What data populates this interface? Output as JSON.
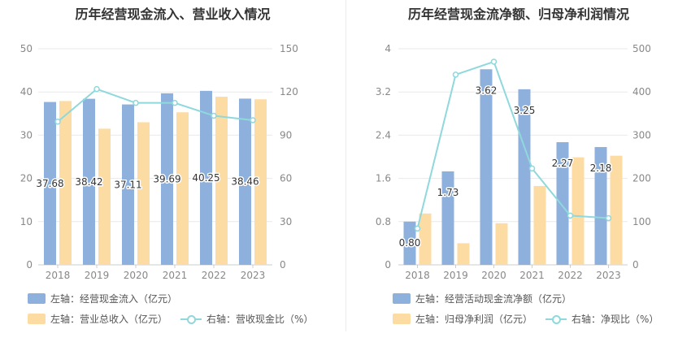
{
  "chart_data": [
    {
      "type": "bar",
      "title": "历年经营现金流入、营业收入情况",
      "categories": [
        "2018",
        "2019",
        "2020",
        "2021",
        "2022",
        "2023"
      ],
      "left_axis": {
        "ylim": [
          0,
          50
        ],
        "ticks": [
          "0",
          "10",
          "20",
          "30",
          "40",
          "50"
        ]
      },
      "right_axis": {
        "ylim": [
          0,
          150
        ],
        "ticks": [
          "0",
          "30",
          "60",
          "90",
          "120",
          "150"
        ]
      },
      "series": [
        {
          "name": "左轴：经营现金流入（亿元）",
          "type": "bar",
          "axis": "left",
          "color": "#8eb0dc",
          "values": [
            37.68,
            38.42,
            37.11,
            39.69,
            40.25,
            38.46
          ],
          "labels": [
            "37.68",
            "38.42",
            "37.11",
            "39.69",
            "40.25",
            "38.46"
          ]
        },
        {
          "name": "左轴：营业总收入（亿元）",
          "type": "bar",
          "axis": "left",
          "color": "#fddca3",
          "values": [
            37.9,
            31.5,
            33.0,
            35.3,
            38.9,
            38.3
          ]
        },
        {
          "name": "右轴：营收现金比（%）",
          "type": "line",
          "axis": "right",
          "color": "#8fd8dc",
          "values": [
            99.4,
            122.0,
            112.4,
            112.4,
            103.5,
            100.4
          ]
        }
      ],
      "grid": true,
      "legend": "bottom"
    },
    {
      "type": "bar",
      "title": "历年经营现金流净额、归母净利润情况",
      "categories": [
        "2018",
        "2019",
        "2020",
        "2021",
        "2022",
        "2023"
      ],
      "left_axis": {
        "ylim": [
          0,
          4
        ],
        "ticks": [
          "0",
          "0.8",
          "1.6",
          "2.4",
          "3.2",
          "4"
        ]
      },
      "right_axis": {
        "ylim": [
          0,
          500
        ],
        "ticks": [
          "0",
          "100",
          "200",
          "300",
          "400",
          "500"
        ]
      },
      "series": [
        {
          "name": "左轴：经营活动现金流净额（亿元）",
          "type": "bar",
          "axis": "left",
          "color": "#8eb0dc",
          "values": [
            0.8,
            1.73,
            3.62,
            3.25,
            2.27,
            2.18
          ],
          "labels": [
            "0.80",
            "1.73",
            "3.62",
            "3.25",
            "2.27",
            "2.18"
          ]
        },
        {
          "name": "左轴：归母净利润（亿元）",
          "type": "bar",
          "axis": "left",
          "color": "#fddca3",
          "values": [
            0.95,
            0.4,
            0.77,
            1.46,
            1.99,
            2.02
          ]
        },
        {
          "name": "右轴：净现比（%）",
          "type": "line",
          "axis": "right",
          "color": "#8fd8dc",
          "values": [
            84,
            440,
            470,
            223,
            114,
            108
          ]
        }
      ],
      "grid": true,
      "legend": "bottom"
    }
  ]
}
